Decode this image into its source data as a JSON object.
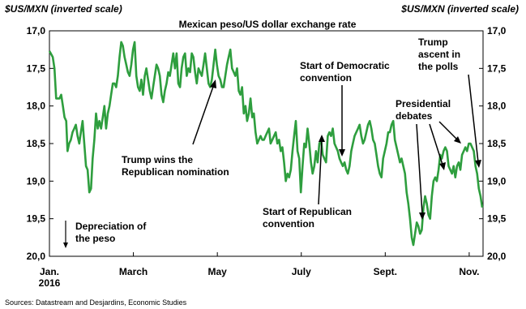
{
  "chart_data": {
    "type": "line",
    "title": "Mexican peso/US dollar exchange rate",
    "ylabel_left": "$US/MXN (inverted scale)",
    "ylabel_right": "$US/MXN (inverted scale)",
    "y_inverted": true,
    "ylim": [
      17.0,
      20.0
    ],
    "yticks": [
      "17,0",
      "17,5",
      "18,0",
      "18,5",
      "19,0",
      "19,5",
      "20,0"
    ],
    "yticks_right": [
      "17,0",
      "17,5",
      "18,0",
      "18,5",
      "19,0",
      "19,5",
      "20,0"
    ],
    "xticks": [
      {
        "label": "Jan.",
        "sub": "2016",
        "month": 0
      },
      {
        "label": "March",
        "month": 2
      },
      {
        "label": "May",
        "month": 4
      },
      {
        "label": "July",
        "month": 6
      },
      {
        "label": "Sept.",
        "month": 8
      },
      {
        "label": "Nov.",
        "month": 10
      }
    ],
    "series": [
      {
        "color": "#2e9e3e",
        "points": [
          [
            0.0,
            17.27
          ],
          [
            0.03,
            17.3
          ],
          [
            0.08,
            17.35
          ],
          [
            0.12,
            17.5
          ],
          [
            0.16,
            17.9
          ],
          [
            0.2,
            17.9
          ],
          [
            0.24,
            17.9
          ],
          [
            0.28,
            17.85
          ],
          [
            0.32,
            18.0
          ],
          [
            0.36,
            18.15
          ],
          [
            0.4,
            18.2
          ],
          [
            0.43,
            18.6
          ],
          [
            0.47,
            18.5
          ],
          [
            0.51,
            18.45
          ],
          [
            0.55,
            18.35
          ],
          [
            0.59,
            18.3
          ],
          [
            0.63,
            18.25
          ],
          [
            0.67,
            18.4
          ],
          [
            0.71,
            18.5
          ],
          [
            0.75,
            18.35
          ],
          [
            0.79,
            18.2
          ],
          [
            0.83,
            18.5
          ],
          [
            0.87,
            18.8
          ],
          [
            0.91,
            18.85
          ],
          [
            0.95,
            19.15
          ],
          [
            0.99,
            19.1
          ],
          [
            1.03,
            18.7
          ],
          [
            1.07,
            18.45
          ],
          [
            1.11,
            18.1
          ],
          [
            1.15,
            18.3
          ],
          [
            1.19,
            18.2
          ],
          [
            1.23,
            18.3
          ],
          [
            1.27,
            18.15
          ],
          [
            1.31,
            18.0
          ],
          [
            1.35,
            18.3
          ],
          [
            1.39,
            18.1
          ],
          [
            1.43,
            18.0
          ],
          [
            1.47,
            17.85
          ],
          [
            1.51,
            17.7
          ],
          [
            1.55,
            17.7
          ],
          [
            1.59,
            17.75
          ],
          [
            1.63,
            17.6
          ],
          [
            1.67,
            17.35
          ],
          [
            1.71,
            17.15
          ],
          [
            1.75,
            17.2
          ],
          [
            1.79,
            17.35
          ],
          [
            1.83,
            17.45
          ],
          [
            1.87,
            17.55
          ],
          [
            1.91,
            17.6
          ],
          [
            1.95,
            17.45
          ],
          [
            1.99,
            17.25
          ],
          [
            2.03,
            17.15
          ],
          [
            2.07,
            17.6
          ],
          [
            2.11,
            17.75
          ],
          [
            2.15,
            17.8
          ],
          [
            2.19,
            17.65
          ],
          [
            2.23,
            17.85
          ],
          [
            2.27,
            17.6
          ],
          [
            2.31,
            17.5
          ],
          [
            2.35,
            17.65
          ],
          [
            2.39,
            17.8
          ],
          [
            2.43,
            17.9
          ],
          [
            2.47,
            17.75
          ],
          [
            2.51,
            17.6
          ],
          [
            2.55,
            17.45
          ],
          [
            2.59,
            17.5
          ],
          [
            2.63,
            17.6
          ],
          [
            2.67,
            17.85
          ],
          [
            2.71,
            17.95
          ],
          [
            2.75,
            17.8
          ],
          [
            2.79,
            17.7
          ],
          [
            2.83,
            17.55
          ],
          [
            2.87,
            17.6
          ],
          [
            2.91,
            17.45
          ],
          [
            2.95,
            17.3
          ],
          [
            2.99,
            17.5
          ],
          [
            3.03,
            17.3
          ],
          [
            3.07,
            17.7
          ],
          [
            3.11,
            17.75
          ],
          [
            3.15,
            17.5
          ],
          [
            3.19,
            17.35
          ],
          [
            3.23,
            17.3
          ],
          [
            3.27,
            17.6
          ],
          [
            3.31,
            17.5
          ],
          [
            3.35,
            17.55
          ],
          [
            3.39,
            17.3
          ],
          [
            3.43,
            17.35
          ],
          [
            3.47,
            17.55
          ],
          [
            3.51,
            17.7
          ],
          [
            3.55,
            17.5
          ],
          [
            3.59,
            17.55
          ],
          [
            3.63,
            17.6
          ],
          [
            3.67,
            17.45
          ],
          [
            3.71,
            17.3
          ],
          [
            3.75,
            17.5
          ],
          [
            3.79,
            17.7
          ],
          [
            3.83,
            17.75
          ],
          [
            3.87,
            17.65
          ],
          [
            3.91,
            17.45
          ],
          [
            3.95,
            17.25
          ],
          [
            3.99,
            17.45
          ],
          [
            4.03,
            17.6
          ],
          [
            4.07,
            17.65
          ],
          [
            4.11,
            17.75
          ],
          [
            4.15,
            17.75
          ],
          [
            4.19,
            17.6
          ],
          [
            4.23,
            17.45
          ],
          [
            4.27,
            17.35
          ],
          [
            4.31,
            17.25
          ],
          [
            4.35,
            17.5
          ],
          [
            4.39,
            17.55
          ],
          [
            4.43,
            17.6
          ],
          [
            4.47,
            17.5
          ],
          [
            4.51,
            17.8
          ],
          [
            4.55,
            17.85
          ],
          [
            4.59,
            17.75
          ],
          [
            4.63,
            18.1
          ],
          [
            4.67,
            18.0
          ],
          [
            4.71,
            18.2
          ],
          [
            4.75,
            18.1
          ],
          [
            4.79,
            17.9
          ],
          [
            4.83,
            18.15
          ],
          [
            4.87,
            18.1
          ],
          [
            4.91,
            18.35
          ],
          [
            4.95,
            18.5
          ],
          [
            4.99,
            18.45
          ],
          [
            5.03,
            18.4
          ],
          [
            5.07,
            18.45
          ],
          [
            5.11,
            18.45
          ],
          [
            5.15,
            18.4
          ],
          [
            5.19,
            18.35
          ],
          [
            5.23,
            18.3
          ],
          [
            5.27,
            18.5
          ],
          [
            5.31,
            18.45
          ],
          [
            5.35,
            18.4
          ],
          [
            5.39,
            18.35
          ],
          [
            5.43,
            18.5
          ],
          [
            5.47,
            18.45
          ],
          [
            5.51,
            18.6
          ],
          [
            5.55,
            18.55
          ],
          [
            5.59,
            18.75
          ],
          [
            5.63,
            19.0
          ],
          [
            5.67,
            18.9
          ],
          [
            5.71,
            18.95
          ],
          [
            5.75,
            18.85
          ],
          [
            5.79,
            18.6
          ],
          [
            5.83,
            18.4
          ],
          [
            5.87,
            18.2
          ],
          [
            5.91,
            18.6
          ],
          [
            5.95,
            18.7
          ],
          [
            5.99,
            19.15
          ],
          [
            6.03,
            18.8
          ],
          [
            6.07,
            18.5
          ],
          [
            6.11,
            18.55
          ],
          [
            6.15,
            18.3
          ],
          [
            6.19,
            18.5
          ],
          [
            6.23,
            18.75
          ],
          [
            6.27,
            18.9
          ],
          [
            6.31,
            18.8
          ],
          [
            6.35,
            18.6
          ],
          [
            6.39,
            18.75
          ],
          [
            6.43,
            18.5
          ],
          [
            6.47,
            18.45
          ],
          [
            6.51,
            18.65
          ],
          [
            6.55,
            18.7
          ],
          [
            6.59,
            18.75
          ],
          [
            6.63,
            18.4
          ],
          [
            6.67,
            18.35
          ],
          [
            6.71,
            18.4
          ],
          [
            6.75,
            18.3
          ],
          [
            6.79,
            18.5
          ],
          [
            6.83,
            18.55
          ],
          [
            6.87,
            18.6
          ],
          [
            6.91,
            18.7
          ],
          [
            6.95,
            18.75
          ],
          [
            6.99,
            18.8
          ],
          [
            7.03,
            18.75
          ],
          [
            7.07,
            18.85
          ],
          [
            7.11,
            18.9
          ],
          [
            7.15,
            18.8
          ],
          [
            7.19,
            18.6
          ],
          [
            7.23,
            18.5
          ],
          [
            7.27,
            18.4
          ],
          [
            7.31,
            18.35
          ],
          [
            7.35,
            18.3
          ],
          [
            7.39,
            18.25
          ],
          [
            7.43,
            18.4
          ],
          [
            7.47,
            18.5
          ],
          [
            7.51,
            18.45
          ],
          [
            7.55,
            18.35
          ],
          [
            7.59,
            18.25
          ],
          [
            7.63,
            18.2
          ],
          [
            7.67,
            18.3
          ],
          [
            7.71,
            18.45
          ],
          [
            7.75,
            18.5
          ],
          [
            7.79,
            18.65
          ],
          [
            7.83,
            18.8
          ],
          [
            7.87,
            18.9
          ],
          [
            7.91,
            18.95
          ],
          [
            7.95,
            18.7
          ],
          [
            7.99,
            18.6
          ],
          [
            8.03,
            18.5
          ],
          [
            8.07,
            18.35
          ],
          [
            8.11,
            18.35
          ],
          [
            8.15,
            18.25
          ],
          [
            8.19,
            18.2
          ],
          [
            8.23,
            18.45
          ],
          [
            8.27,
            18.55
          ],
          [
            8.31,
            18.65
          ],
          [
            8.35,
            18.75
          ],
          [
            8.39,
            18.7
          ],
          [
            8.43,
            18.8
          ],
          [
            8.47,
            18.9
          ],
          [
            8.51,
            19.15
          ],
          [
            8.55,
            19.3
          ],
          [
            8.59,
            19.5
          ],
          [
            8.63,
            19.75
          ],
          [
            8.67,
            19.85
          ],
          [
            8.71,
            19.7
          ],
          [
            8.75,
            19.55
          ],
          [
            8.79,
            19.6
          ],
          [
            8.83,
            19.7
          ],
          [
            8.87,
            19.65
          ],
          [
            8.91,
            19.35
          ],
          [
            8.95,
            19.2
          ],
          [
            8.99,
            19.3
          ],
          [
            9.03,
            19.45
          ],
          [
            9.07,
            19.5
          ],
          [
            9.11,
            19.2
          ],
          [
            9.15,
            19.0
          ],
          [
            9.19,
            18.95
          ],
          [
            9.23,
            19.0
          ],
          [
            9.27,
            18.85
          ],
          [
            9.31,
            18.65
          ],
          [
            9.35,
            18.7
          ],
          [
            9.39,
            18.6
          ],
          [
            9.43,
            18.55
          ],
          [
            9.47,
            18.6
          ],
          [
            9.51,
            18.8
          ],
          [
            9.55,
            18.85
          ],
          [
            9.59,
            18.9
          ],
          [
            9.63,
            18.8
          ],
          [
            9.67,
            18.95
          ],
          [
            9.71,
            18.8
          ],
          [
            9.75,
            18.75
          ],
          [
            9.79,
            18.85
          ],
          [
            9.83,
            18.65
          ],
          [
            9.87,
            18.6
          ],
          [
            9.91,
            18.55
          ],
          [
            9.95,
            18.6
          ],
          [
            9.99,
            18.5
          ],
          [
            10.03,
            18.5
          ],
          [
            10.07,
            18.55
          ],
          [
            10.11,
            18.6
          ],
          [
            10.15,
            18.8
          ],
          [
            10.19,
            18.9
          ],
          [
            10.23,
            19.1
          ],
          [
            10.27,
            19.2
          ],
          [
            10.31,
            19.35
          ]
        ]
      }
    ],
    "annotations": [
      {
        "lines": [
          "Trump wins the",
          "Republican nomination"
        ]
      },
      {
        "lines": [
          "Start of Democratic",
          "convention"
        ]
      },
      {
        "lines": [
          "Start of Republican",
          "convention"
        ]
      },
      {
        "lines": [
          "Presidential",
          "debates"
        ]
      },
      {
        "lines": [
          "Trump",
          "ascent in",
          "the polls"
        ]
      },
      {
        "lines": [
          "Depreciation of",
          "the peso"
        ]
      }
    ],
    "source": "Sources: Datastream and Desjardins, Economic Studies"
  }
}
